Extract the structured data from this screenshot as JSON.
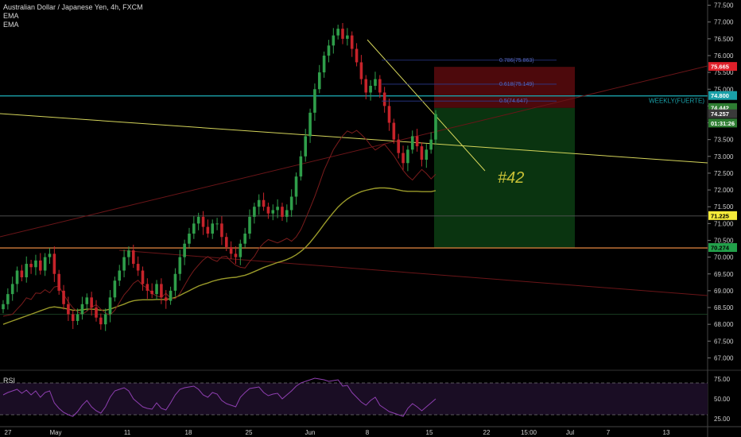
{
  "header": {
    "title": "Australian Dollar / Japanese Yen, 4h, FXCM",
    "indicators": [
      "EMA",
      "EMA"
    ]
  },
  "rsi_label": "RSI",
  "annotation": "#42",
  "colors": {
    "background": "#000000",
    "bull": "#2f9e4a",
    "bear": "#c6232a",
    "ema_slow": "#9a9a2a",
    "trendline": "#d4d45a",
    "weekly_line": "#1aa0a8",
    "rsi_line": "#8e3fb0"
  },
  "chart_data": [
    {
      "type": "candlestick",
      "title": "Australian Dollar / Japanese Yen, 4h, FXCM",
      "y_axis_ticks": [
        "67.000",
        "67.500",
        "68.000",
        "68.500",
        "69.000",
        "69.500",
        "70.000",
        "70.500",
        "71.000",
        "71.500",
        "72.000",
        "72.500",
        "73.000",
        "73.500",
        "74.000",
        "74.500",
        "75.000",
        "75.500",
        "76.000",
        "76.500",
        "77.000",
        "77.500"
      ],
      "ylim": [
        66.75,
        77.75
      ],
      "x_axis_ticks": [
        "27",
        "May",
        "11",
        "18",
        "25",
        "Jun",
        "8",
        "15",
        "22",
        "15:00",
        "Jul",
        "7",
        "13"
      ],
      "price_labels": [
        {
          "text": "75.665",
          "value": 75.665,
          "color": "#e0202a",
          "text_color": "#ffffff"
        },
        {
          "text": "74.800",
          "value": 74.8,
          "color": "#1aa0a8",
          "text_color": "#ffffff"
        },
        {
          "text": "74.442",
          "value": 74.442,
          "color": "#2e7d32",
          "text_color": "#ffffff"
        },
        {
          "text": "74.257",
          "value": 74.257,
          "color": "#3a3a3a",
          "text_color": "#ffffff"
        },
        {
          "text": "01:31:26",
          "value": 73.98,
          "color": "#2e7d32",
          "text_color": "#ffffff"
        },
        {
          "text": "71.225",
          "value": 71.225,
          "color": "#f5ea3a",
          "text_color": "#000000"
        },
        {
          "text": "70.274",
          "value": 70.274,
          "color": "#22a04a",
          "text_color": "#000000"
        }
      ],
      "horizontal_levels": [
        {
          "value": 74.8,
          "label": "WEEKLY(FUERTE)",
          "color": "#1aa0a8"
        },
        {
          "value": 70.274,
          "color": "#d07a3a"
        },
        {
          "value": 71.225,
          "color": "#555555"
        },
        {
          "value": 68.3,
          "color": "#1f4d2a"
        }
      ],
      "fibonacci": [
        {
          "label": "0.786(75.863)",
          "value": 75.863
        },
        {
          "label": "0.618(75.149)",
          "value": 75.149
        },
        {
          "label": "0.5(74.647)",
          "value": 74.647
        }
      ],
      "position": {
        "stop": 75.665,
        "entry": 74.442,
        "target": 70.274
      },
      "candles_close": [
        68.6,
        68.9,
        69.2,
        69.6,
        69.4,
        69.8,
        69.7,
        69.9,
        69.6,
        70.0,
        70.1,
        69.5,
        69.0,
        68.6,
        68.3,
        68.1,
        68.3,
        68.6,
        68.8,
        68.5,
        68.2,
        68.0,
        68.3,
        68.8,
        69.3,
        69.6,
        70.0,
        70.2,
        69.8,
        69.6,
        69.2,
        69.0,
        68.9,
        69.2,
        68.8,
        68.7,
        69.0,
        69.5,
        70.0,
        70.4,
        70.7,
        71.0,
        71.2,
        70.9,
        70.7,
        71.0,
        71.0,
        70.6,
        70.3,
        70.1,
        70.0,
        70.4,
        70.7,
        71.2,
        71.5,
        71.7,
        71.5,
        71.3,
        71.4,
        71.5,
        71.2,
        71.4,
        71.8,
        72.4,
        73.0,
        73.6,
        74.3,
        75.0,
        75.5,
        76.0,
        76.3,
        76.6,
        76.8,
        76.5,
        76.6,
        76.2,
        75.8,
        75.3,
        74.9,
        75.1,
        75.3,
        74.9,
        74.5,
        74.0,
        73.5,
        73.1,
        72.8,
        73.2,
        73.6,
        73.3,
        72.9,
        73.2,
        73.5,
        74.257
      ],
      "ema_slow": [
        68.0,
        68.05,
        68.1,
        68.15,
        68.2,
        68.25,
        68.3,
        68.35,
        68.4,
        68.45,
        68.5,
        68.52,
        68.5,
        68.48,
        68.45,
        68.42,
        68.42,
        68.43,
        68.45,
        68.45,
        68.44,
        68.42,
        68.42,
        68.45,
        68.5,
        68.55,
        68.6,
        68.66,
        68.7,
        68.72,
        68.73,
        68.73,
        68.73,
        68.74,
        68.74,
        68.74,
        68.76,
        68.8,
        68.86,
        68.93,
        69.0,
        69.07,
        69.14,
        69.19,
        69.23,
        69.28,
        69.32,
        69.35,
        69.37,
        69.39,
        69.4,
        69.43,
        69.46,
        69.51,
        69.57,
        69.63,
        69.69,
        69.74,
        69.79,
        69.84,
        69.88,
        69.93,
        69.99,
        70.07,
        70.17,
        70.29,
        70.44,
        70.61,
        70.79,
        70.98,
        71.16,
        71.33,
        71.49,
        71.62,
        71.73,
        71.82,
        71.89,
        71.95,
        71.99,
        72.02,
        72.05,
        72.06,
        72.06,
        72.05,
        72.03,
        72.0,
        71.97,
        71.96,
        71.96,
        71.96,
        71.95,
        71.95,
        71.95,
        71.98
      ],
      "rsi": {
        "y_axis_ticks": [
          "25.00",
          "50.00",
          "75.00"
        ],
        "ylim": [
          20,
          80
        ],
        "upper": 70,
        "lower": 30,
        "values": [
          55,
          58,
          60,
          62,
          57,
          61,
          55,
          60,
          52,
          58,
          60,
          45,
          38,
          33,
          30,
          28,
          34,
          42,
          48,
          40,
          35,
          32,
          40,
          52,
          60,
          62,
          64,
          60,
          50,
          45,
          40,
          38,
          37,
          45,
          38,
          36,
          45,
          55,
          62,
          64,
          65,
          66,
          62,
          55,
          52,
          58,
          56,
          48,
          44,
          42,
          40,
          52,
          58,
          63,
          64,
          65,
          58,
          54,
          56,
          57,
          50,
          55,
          60,
          66,
          70,
          72,
          74,
          76,
          75,
          74,
          72,
          73,
          74,
          66,
          67,
          58,
          52,
          46,
          42,
          48,
          52,
          42,
          38,
          34,
          32,
          30,
          28,
          38,
          44,
          40,
          35,
          40,
          45,
          50
        ]
      }
    }
  ]
}
